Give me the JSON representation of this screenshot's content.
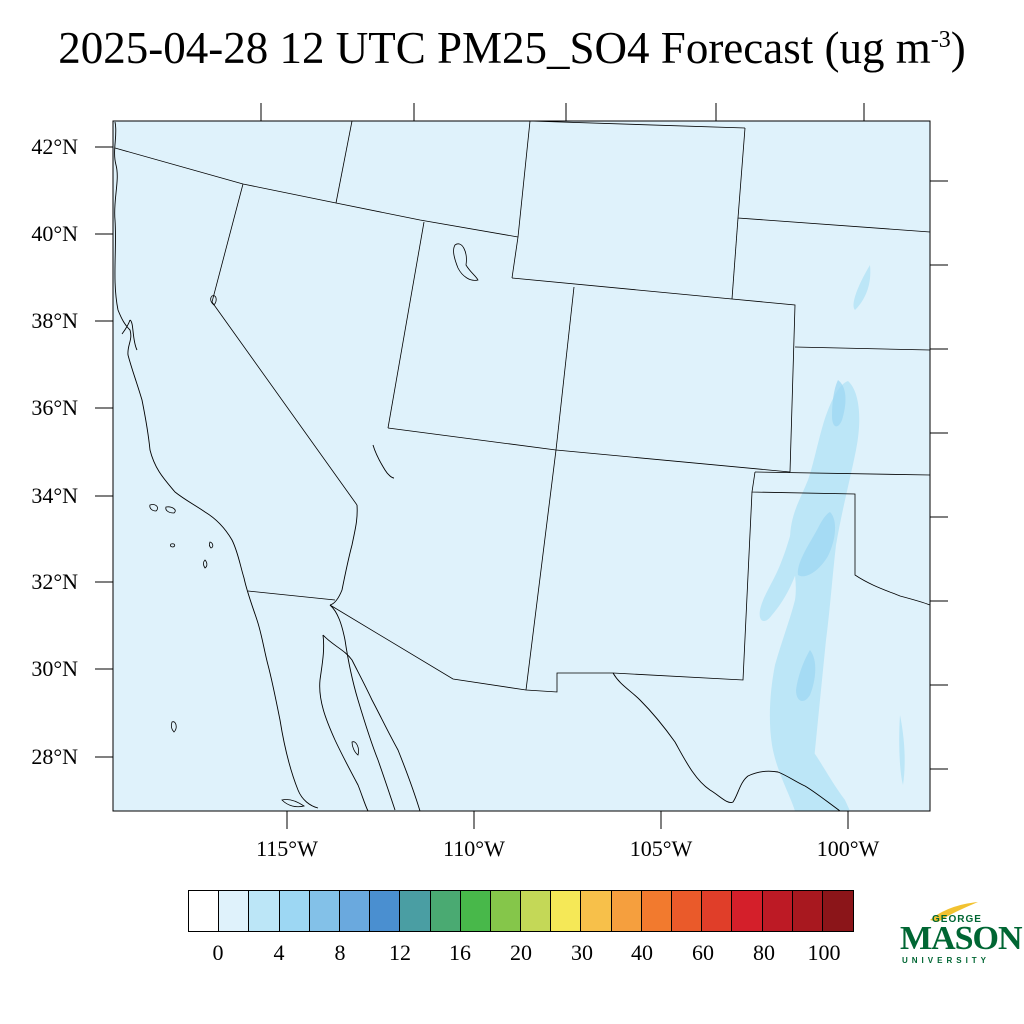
{
  "title": {
    "text": "2025-04-28 12 UTC PM25_SO4 Forecast (ug m",
    "superscript": "-3",
    "close": ")"
  },
  "map": {
    "background_color": "#dff2fb",
    "boundary_color": "#000000",
    "lat_labels": [
      "42°N",
      "40°N",
      "38°N",
      "36°N",
      "34°N",
      "32°N",
      "30°N",
      "28°N"
    ],
    "lon_labels": [
      "115°W",
      "110°W",
      "105°W",
      "100°W"
    ]
  },
  "colorbar": {
    "colors": [
      "#ffffff",
      "#dff2fb",
      "#bce6f7",
      "#9dd7f3",
      "#83c1e8",
      "#6aa9de",
      "#4a8fd0",
      "#4a9ea3",
      "#4aaa72",
      "#48b84a",
      "#85c64a",
      "#c4d857",
      "#f5e857",
      "#f7c04a",
      "#f59f3e",
      "#f27a2e",
      "#ea5a2a",
      "#e03e29",
      "#d41f2a",
      "#bd1a25",
      "#a8181f",
      "#8b1519"
    ],
    "labels": [
      "0",
      "4",
      "8",
      "12",
      "16",
      "20",
      "30",
      "40",
      "60",
      "80",
      "100"
    ]
  },
  "logo": {
    "line1": "GEORGE",
    "line2": "MASON",
    "line3": "UNIVERSITY",
    "color": "#006633",
    "accent": "#f2c230"
  }
}
